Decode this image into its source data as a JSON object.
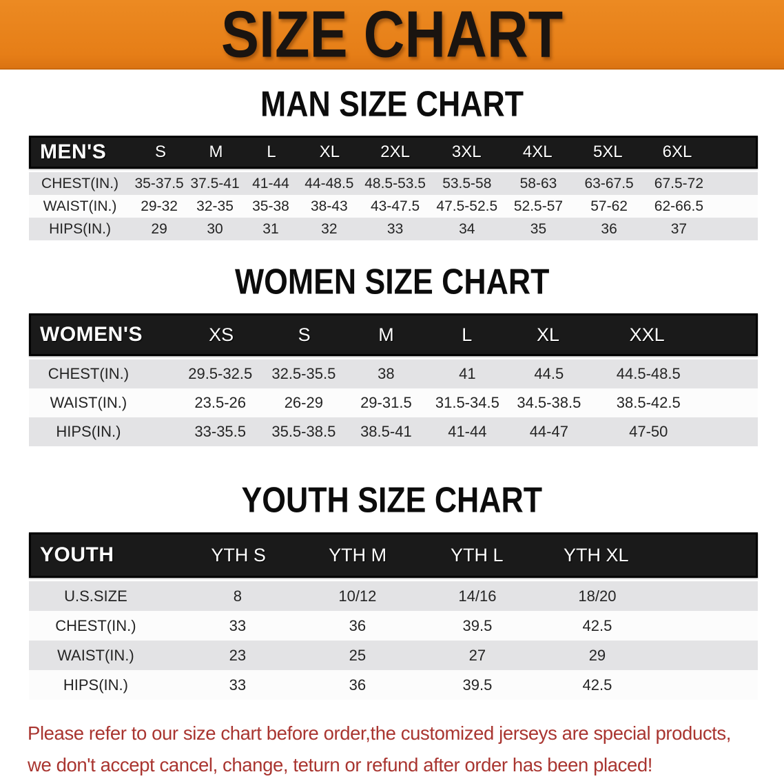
{
  "banner": {
    "title": "SIZE CHART"
  },
  "colors": {
    "banner_orange": "#E67E17",
    "header_band_black": "#1A1A1A",
    "row_gray": "#E3E3E5",
    "row_white": "#FCFCFC",
    "footer_red": "#A93530"
  },
  "men": {
    "title": "MAN SIZE CHART",
    "label": "MEN'S",
    "cols": [
      "S",
      "M",
      "L",
      "XL",
      "2XL",
      "3XL",
      "4XL",
      "5XL",
      "6XL"
    ],
    "rows": [
      {
        "label": "CHEST(IN.)",
        "v": [
          "35-37.5",
          "37.5-41",
          "41-44",
          "44-48.5",
          "48.5-53.5",
          "53.5-58",
          "58-63",
          "63-67.5",
          "67.5-72"
        ]
      },
      {
        "label": "WAIST(IN.)",
        "v": [
          "29-32",
          "32-35",
          "35-38",
          "38-43",
          "43-47.5",
          "47.5-52.5",
          "52.5-57",
          "57-62",
          "62-66.5"
        ]
      },
      {
        "label": "HIPS(IN.)",
        "v": [
          "29",
          "30",
          "31",
          "32",
          "33",
          "34",
          "35",
          "36",
          "37"
        ]
      }
    ]
  },
  "women": {
    "title": "WOMEN SIZE CHART",
    "label": "WOMEN'S",
    "cols": [
      "XS",
      "S",
      "M",
      "L",
      "XL",
      "XXL"
    ],
    "rows": [
      {
        "label": "CHEST(IN.)",
        "v": [
          "29.5-32.5",
          "32.5-35.5",
          "38",
          "41",
          "44.5",
          "44.5-48.5"
        ]
      },
      {
        "label": "WAIST(IN.)",
        "v": [
          "23.5-26",
          "26-29",
          "29-31.5",
          "31.5-34.5",
          "34.5-38.5",
          "38.5-42.5"
        ]
      },
      {
        "label": "HIPS(IN.)",
        "v": [
          "33-35.5",
          "35.5-38.5",
          "38.5-41",
          "41-44",
          "44-47",
          "47-50"
        ]
      }
    ]
  },
  "youth": {
    "title": "YOUTH SIZE CHART",
    "label": "YOUTH",
    "cols": [
      "YTH S",
      "YTH M",
      "YTH L",
      "YTH XL"
    ],
    "rows": [
      {
        "label": "U.S.SIZE",
        "v": [
          "8",
          "10/12",
          "14/16",
          "18/20"
        ]
      },
      {
        "label": "CHEST(IN.)",
        "v": [
          "33",
          "36",
          "39.5",
          "42.5"
        ]
      },
      {
        "label": "WAIST(IN.)",
        "v": [
          "23",
          "25",
          "27",
          "29"
        ]
      },
      {
        "label": "HIPS(IN.)",
        "v": [
          "33",
          "36",
          "39.5",
          "42.5"
        ]
      }
    ]
  },
  "footer": {
    "line1": "Please refer to our size chart before order,the customized jerseys are special products,",
    "line2": "we don't accept cancel, change, teturn or refund after order has been placed!"
  }
}
